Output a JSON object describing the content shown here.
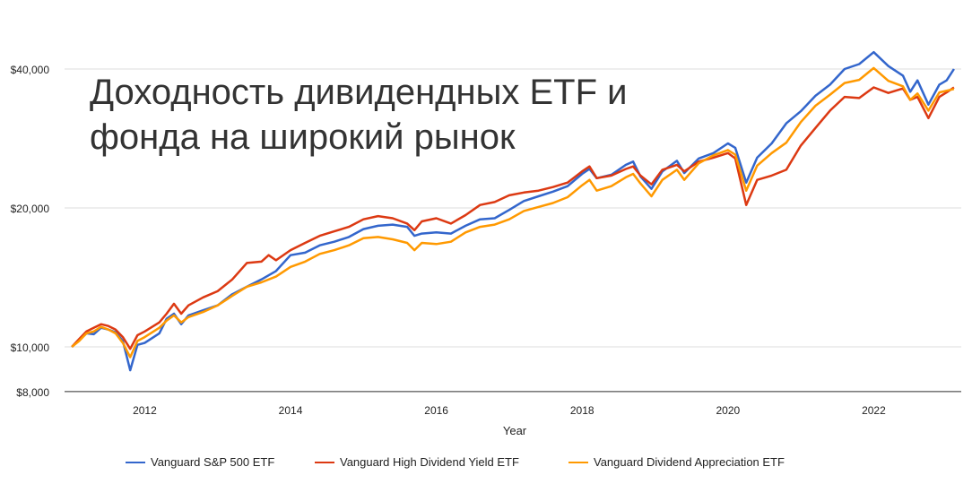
{
  "chart_data": {
    "type": "line",
    "title": "Доходность дивидендных ETF и фонда на широкий рынок",
    "xlabel": "Year",
    "ylabel": "",
    "y_scale": "log",
    "ylim": [
      8000,
      50000
    ],
    "xlim": [
      2010.9,
      2023.2
    ],
    "y_ticks": [
      8000,
      10000,
      20000,
      40000
    ],
    "y_tick_labels": [
      "$8,000",
      "$10,000",
      "$20,000",
      "$40,000"
    ],
    "x_ticks": [
      2012,
      2014,
      2016,
      2018,
      2020,
      2022
    ],
    "x_tick_labels": [
      "2012",
      "2014",
      "2016",
      "2018",
      "2020",
      "2022"
    ],
    "grid": true,
    "legend_position": "bottom",
    "series": [
      {
        "name": "Vanguard S&P 500 ETF",
        "color": "#3366cc",
        "points": [
          [
            2011.0,
            10000
          ],
          [
            2011.1,
            10350
          ],
          [
            2011.2,
            10700
          ],
          [
            2011.3,
            10650
          ],
          [
            2011.4,
            11000
          ],
          [
            2011.5,
            10900
          ],
          [
            2011.6,
            10750
          ],
          [
            2011.7,
            10300
          ],
          [
            2011.8,
            8900
          ],
          [
            2011.9,
            10100
          ],
          [
            2012.0,
            10200
          ],
          [
            2012.2,
            10700
          ],
          [
            2012.3,
            11500
          ],
          [
            2012.4,
            11800
          ],
          [
            2012.5,
            11200
          ],
          [
            2012.6,
            11700
          ],
          [
            2012.8,
            12000
          ],
          [
            2013.0,
            12300
          ],
          [
            2013.2,
            13000
          ],
          [
            2013.4,
            13500
          ],
          [
            2013.6,
            14000
          ],
          [
            2013.8,
            14600
          ],
          [
            2014.0,
            15800
          ],
          [
            2014.2,
            16000
          ],
          [
            2014.4,
            16600
          ],
          [
            2014.6,
            16900
          ],
          [
            2014.8,
            17300
          ],
          [
            2015.0,
            18000
          ],
          [
            2015.2,
            18300
          ],
          [
            2015.4,
            18400
          ],
          [
            2015.6,
            18200
          ],
          [
            2015.7,
            17400
          ],
          [
            2015.8,
            17600
          ],
          [
            2016.0,
            17700
          ],
          [
            2016.2,
            17600
          ],
          [
            2016.4,
            18300
          ],
          [
            2016.6,
            18900
          ],
          [
            2016.8,
            19000
          ],
          [
            2017.0,
            19800
          ],
          [
            2017.2,
            20700
          ],
          [
            2017.4,
            21200
          ],
          [
            2017.6,
            21700
          ],
          [
            2017.8,
            22300
          ],
          [
            2018.0,
            23700
          ],
          [
            2018.1,
            24300
          ],
          [
            2018.2,
            23200
          ],
          [
            2018.4,
            23600
          ],
          [
            2018.6,
            24800
          ],
          [
            2018.7,
            25200
          ],
          [
            2018.8,
            23400
          ],
          [
            2018.95,
            22000
          ],
          [
            2019.1,
            24000
          ],
          [
            2019.3,
            25300
          ],
          [
            2019.4,
            23800
          ],
          [
            2019.6,
            25600
          ],
          [
            2019.8,
            26300
          ],
          [
            2020.0,
            27600
          ],
          [
            2020.1,
            27000
          ],
          [
            2020.25,
            22700
          ],
          [
            2020.4,
            25700
          ],
          [
            2020.6,
            27600
          ],
          [
            2020.8,
            30500
          ],
          [
            2021.0,
            32400
          ],
          [
            2021.2,
            35000
          ],
          [
            2021.4,
            37000
          ],
          [
            2021.6,
            40000
          ],
          [
            2021.8,
            41000
          ],
          [
            2022.0,
            43500
          ],
          [
            2022.2,
            40600
          ],
          [
            2022.4,
            38700
          ],
          [
            2022.5,
            35700
          ],
          [
            2022.6,
            37800
          ],
          [
            2022.75,
            33500
          ],
          [
            2022.9,
            37000
          ],
          [
            2023.0,
            37800
          ],
          [
            2023.1,
            40000
          ]
        ]
      },
      {
        "name": "Vanguard High Dividend Yield ETF",
        "color": "#dc3912",
        "points": [
          [
            2011.0,
            10000
          ],
          [
            2011.1,
            10400
          ],
          [
            2011.2,
            10800
          ],
          [
            2011.3,
            11000
          ],
          [
            2011.4,
            11200
          ],
          [
            2011.5,
            11100
          ],
          [
            2011.6,
            10900
          ],
          [
            2011.7,
            10500
          ],
          [
            2011.8,
            9900
          ],
          [
            2011.9,
            10600
          ],
          [
            2012.0,
            10800
          ],
          [
            2012.2,
            11300
          ],
          [
            2012.3,
            11800
          ],
          [
            2012.4,
            12400
          ],
          [
            2012.5,
            11800
          ],
          [
            2012.6,
            12300
          ],
          [
            2012.8,
            12800
          ],
          [
            2013.0,
            13200
          ],
          [
            2013.2,
            14000
          ],
          [
            2013.4,
            15200
          ],
          [
            2013.6,
            15300
          ],
          [
            2013.7,
            15800
          ],
          [
            2013.8,
            15400
          ],
          [
            2014.0,
            16200
          ],
          [
            2014.2,
            16800
          ],
          [
            2014.4,
            17400
          ],
          [
            2014.6,
            17800
          ],
          [
            2014.8,
            18200
          ],
          [
            2015.0,
            18900
          ],
          [
            2015.2,
            19200
          ],
          [
            2015.4,
            19000
          ],
          [
            2015.6,
            18500
          ],
          [
            2015.7,
            17900
          ],
          [
            2015.8,
            18700
          ],
          [
            2016.0,
            19000
          ],
          [
            2016.2,
            18500
          ],
          [
            2016.4,
            19300
          ],
          [
            2016.6,
            20300
          ],
          [
            2016.8,
            20600
          ],
          [
            2017.0,
            21300
          ],
          [
            2017.2,
            21600
          ],
          [
            2017.4,
            21800
          ],
          [
            2017.6,
            22200
          ],
          [
            2017.8,
            22700
          ],
          [
            2018.0,
            24000
          ],
          [
            2018.1,
            24600
          ],
          [
            2018.2,
            23200
          ],
          [
            2018.4,
            23500
          ],
          [
            2018.6,
            24300
          ],
          [
            2018.7,
            24600
          ],
          [
            2018.8,
            23500
          ],
          [
            2018.95,
            22500
          ],
          [
            2019.1,
            24200
          ],
          [
            2019.3,
            24800
          ],
          [
            2019.4,
            24000
          ],
          [
            2019.6,
            25200
          ],
          [
            2019.8,
            25700
          ],
          [
            2020.0,
            26300
          ],
          [
            2020.1,
            25600
          ],
          [
            2020.25,
            20300
          ],
          [
            2020.4,
            23000
          ],
          [
            2020.6,
            23500
          ],
          [
            2020.8,
            24200
          ],
          [
            2021.0,
            27300
          ],
          [
            2021.2,
            29800
          ],
          [
            2021.4,
            32500
          ],
          [
            2021.6,
            34800
          ],
          [
            2021.8,
            34600
          ],
          [
            2022.0,
            36500
          ],
          [
            2022.2,
            35500
          ],
          [
            2022.4,
            36300
          ],
          [
            2022.5,
            34300
          ],
          [
            2022.6,
            34800
          ],
          [
            2022.75,
            31300
          ],
          [
            2022.9,
            34800
          ],
          [
            2023.0,
            35600
          ],
          [
            2023.1,
            36500
          ]
        ]
      },
      {
        "name": "Vanguard Dividend Appreciation ETF",
        "color": "#ff9900",
        "points": [
          [
            2011.0,
            10000
          ],
          [
            2011.1,
            10300
          ],
          [
            2011.2,
            10700
          ],
          [
            2011.3,
            10800
          ],
          [
            2011.4,
            11050
          ],
          [
            2011.5,
            10900
          ],
          [
            2011.6,
            10700
          ],
          [
            2011.7,
            10200
          ],
          [
            2011.8,
            9500
          ],
          [
            2011.9,
            10300
          ],
          [
            2012.0,
            10500
          ],
          [
            2012.2,
            11000
          ],
          [
            2012.3,
            11400
          ],
          [
            2012.4,
            11700
          ],
          [
            2012.5,
            11300
          ],
          [
            2012.6,
            11600
          ],
          [
            2012.8,
            11900
          ],
          [
            2013.0,
            12300
          ],
          [
            2013.2,
            12900
          ],
          [
            2013.4,
            13500
          ],
          [
            2013.6,
            13800
          ],
          [
            2013.8,
            14200
          ],
          [
            2014.0,
            14900
          ],
          [
            2014.2,
            15300
          ],
          [
            2014.4,
            15900
          ],
          [
            2014.6,
            16200
          ],
          [
            2014.8,
            16600
          ],
          [
            2015.0,
            17200
          ],
          [
            2015.2,
            17300
          ],
          [
            2015.4,
            17100
          ],
          [
            2015.6,
            16800
          ],
          [
            2015.7,
            16200
          ],
          [
            2015.8,
            16800
          ],
          [
            2016.0,
            16700
          ],
          [
            2016.2,
            16900
          ],
          [
            2016.4,
            17700
          ],
          [
            2016.6,
            18200
          ],
          [
            2016.8,
            18400
          ],
          [
            2017.0,
            18900
          ],
          [
            2017.2,
            19700
          ],
          [
            2017.4,
            20100
          ],
          [
            2017.6,
            20500
          ],
          [
            2017.8,
            21100
          ],
          [
            2018.0,
            22400
          ],
          [
            2018.1,
            23000
          ],
          [
            2018.2,
            21800
          ],
          [
            2018.4,
            22300
          ],
          [
            2018.6,
            23300
          ],
          [
            2018.7,
            23700
          ],
          [
            2018.8,
            22600
          ],
          [
            2018.95,
            21200
          ],
          [
            2019.1,
            23000
          ],
          [
            2019.3,
            24200
          ],
          [
            2019.4,
            23000
          ],
          [
            2019.6,
            25000
          ],
          [
            2019.8,
            26000
          ],
          [
            2020.0,
            26700
          ],
          [
            2020.1,
            26100
          ],
          [
            2020.25,
            21800
          ],
          [
            2020.4,
            24700
          ],
          [
            2020.6,
            26300
          ],
          [
            2020.8,
            27700
          ],
          [
            2021.0,
            30700
          ],
          [
            2021.2,
            33300
          ],
          [
            2021.4,
            35200
          ],
          [
            2021.6,
            37300
          ],
          [
            2021.8,
            37900
          ],
          [
            2022.0,
            40200
          ],
          [
            2022.2,
            37700
          ],
          [
            2022.4,
            36700
          ],
          [
            2022.5,
            34300
          ],
          [
            2022.6,
            35400
          ],
          [
            2022.75,
            32500
          ],
          [
            2022.9,
            35600
          ],
          [
            2023.0,
            35900
          ],
          [
            2023.1,
            36200
          ]
        ]
      }
    ]
  }
}
